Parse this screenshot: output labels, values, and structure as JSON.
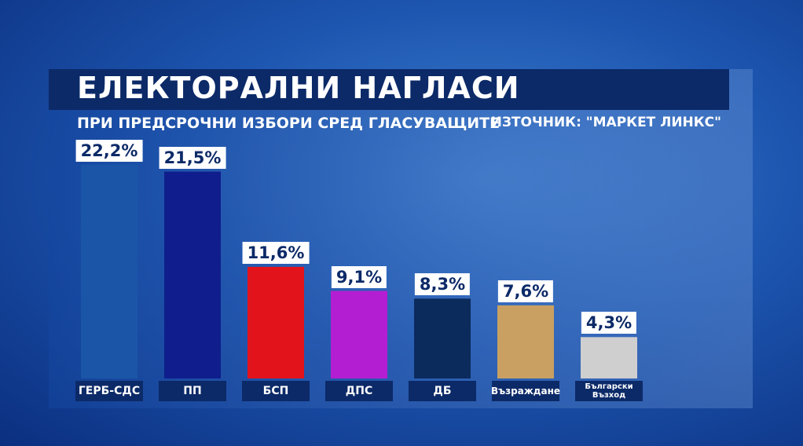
{
  "chart_data": {
    "type": "bar",
    "title": "ЕЛЕКТОРАЛНИ НАГЛАСИ",
    "subtitle": "ПРИ ПРЕДСРОЧНИ ИЗБОРИ СРЕД ГЛАСУВАЩИТЕ",
    "annotation": "ИЗТОЧНИК: \"МАРКЕТ ЛИНКС\"",
    "categories": [
      "ГЕРБ-СДС",
      "ПП",
      "БСП",
      "ДПС",
      "ДБ",
      "Възраждане",
      "Български Възход"
    ],
    "values": [
      22.2,
      21.5,
      11.6,
      9.1,
      8.3,
      7.6,
      4.3
    ],
    "value_labels": [
      "22,2%",
      "21,5%",
      "11,6%",
      "9,1%",
      "8,3%",
      "7,6%",
      "4,3%"
    ],
    "colors": [
      "#1b55a8",
      "#0f1e8c",
      "#e3131c",
      "#b41ed2",
      "#0b2b5c",
      "#c9a062",
      "#cfcfcf"
    ]
  }
}
